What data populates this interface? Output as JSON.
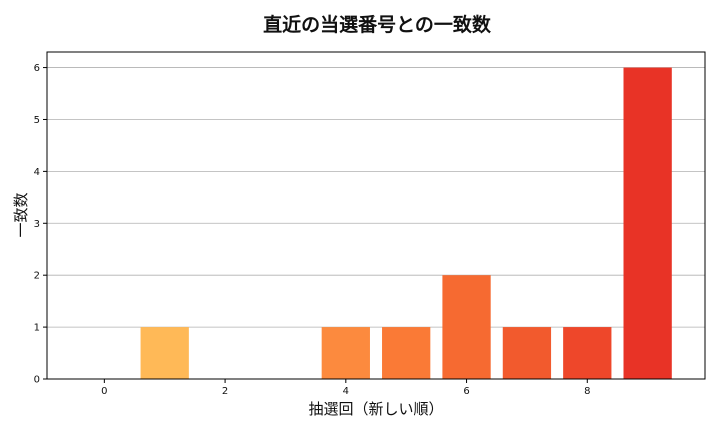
{
  "chart_data": {
    "type": "bar",
    "title": "直近の当選番号との一致数",
    "xlabel": "抽選回（新しい順）",
    "ylabel": "一致数",
    "x": [
      0,
      1,
      2,
      3,
      4,
      5,
      6,
      7,
      8,
      9
    ],
    "values": [
      0,
      1,
      0,
      0,
      1,
      1,
      2,
      1,
      1,
      6
    ],
    "xlim": [
      -0.95,
      9.95
    ],
    "ylim": [
      0,
      6.3
    ],
    "xticks": [
      0,
      2,
      4,
      6,
      8
    ],
    "yticks": [
      0,
      1,
      2,
      3,
      4,
      5,
      6
    ],
    "grid": "horizontal",
    "colors": [
      "#FFC65A",
      "#FFB957",
      "#FFA84F",
      "#FF9A45",
      "#FC8A3E",
      "#FA7A36",
      "#F66A31",
      "#F25A2D",
      "#EE472A",
      "#E83326"
    ]
  }
}
